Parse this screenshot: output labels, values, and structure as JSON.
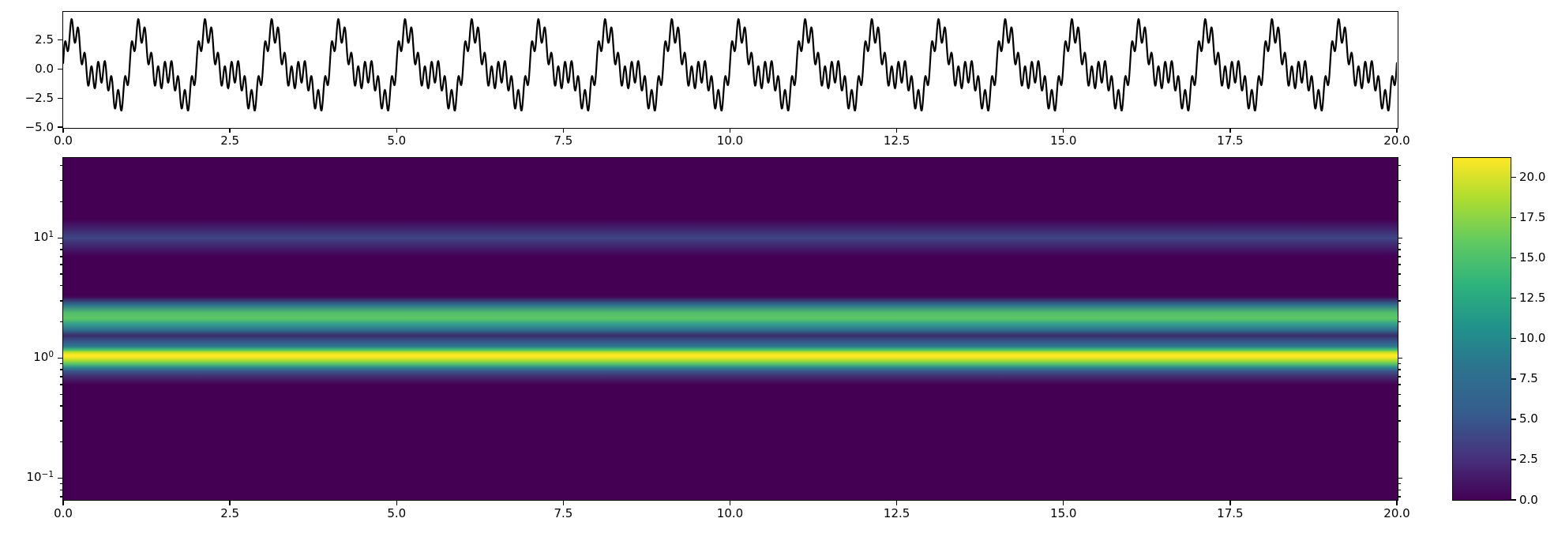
{
  "figure": {
    "background": "#ffffff",
    "title": "",
    "description": "Two-panel matplotlib-style figure: top panel shows a periodic multi-frequency time signal; bottom panel shows its continuous wavelet transform scalogram (viridis colormap, log frequency axis) with a colorbar."
  },
  "chart_data": [
    {
      "id": "signal",
      "type": "line",
      "title": "",
      "xlabel": "",
      "ylabel": "",
      "xlim": [
        0,
        20
      ],
      "ylim": [
        -5.0,
        4.93
      ],
      "grid": false,
      "line_color": "#000000",
      "line_width": 2.2,
      "x_ticks": [
        {
          "value": 0,
          "label": "0.0"
        },
        {
          "value": 2.5,
          "label": "2.5"
        },
        {
          "value": 5,
          "label": "5.0"
        },
        {
          "value": 7.5,
          "label": "7.5"
        },
        {
          "value": 10,
          "label": "10.0"
        },
        {
          "value": 12.5,
          "label": "12.5"
        },
        {
          "value": 15,
          "label": "15.0"
        },
        {
          "value": 17.5,
          "label": "17.5"
        },
        {
          "value": 20,
          "label": "20.0"
        }
      ],
      "y_ticks": [
        {
          "value": 2.5,
          "label": "2.5"
        },
        {
          "value": 0,
          "label": "0.0"
        },
        {
          "value": -2.5,
          "label": "−2.5"
        },
        {
          "value": -5,
          "label": "−5.0"
        }
      ],
      "components": {
        "description": "y(t) = sum of sinusoids",
        "frequencies": [
          1,
          2,
          10
        ],
        "amplitudes": [
          2.1,
          1.5,
          1.0
        ],
        "phases": [
          0.25,
          0,
          0
        ],
        "observed_max": 4.2,
        "observed_min": -4.2,
        "period": 1,
        "samples_per_unit": 160
      }
    },
    {
      "id": "scalogram",
      "type": "heatmap",
      "title": "",
      "xlabel": "",
      "ylabel": "",
      "xlim": [
        0,
        20
      ],
      "y_scale": "log",
      "ylim": [
        0.066,
        46.3
      ],
      "colormap": "viridis",
      "vmin": 0,
      "vmax": 21.2,
      "background_value": 0,
      "background_color": "#440154",
      "x_ticks": [
        {
          "value": 0,
          "label": "0.0"
        },
        {
          "value": 2.5,
          "label": "2.5"
        },
        {
          "value": 5,
          "label": "5.0"
        },
        {
          "value": 7.5,
          "label": "7.5"
        },
        {
          "value": 10,
          "label": "10.0"
        },
        {
          "value": 12.5,
          "label": "12.5"
        },
        {
          "value": 15,
          "label": "15.0"
        },
        {
          "value": 17.5,
          "label": "17.5"
        },
        {
          "value": 20,
          "label": "20.0"
        }
      ],
      "y_major_ticks": [
        {
          "value": 10,
          "base": "10",
          "exponent": "1"
        },
        {
          "value": 1,
          "base": "10",
          "exponent": "0"
        },
        {
          "value": 0.1,
          "base": "10",
          "exponent": "−1"
        }
      ],
      "bands": [
        {
          "center_frequency": 1,
          "peak_intensity": 21,
          "peak_color": "#fbe723",
          "note": "brightest yellow band, constant over all time"
        },
        {
          "center_frequency": 2,
          "peak_intensity": 15,
          "peak_color": "#5cc863",
          "note": "bright green band, constant over all time"
        },
        {
          "center_frequency": 10,
          "peak_intensity": 5,
          "peak_color": "#3f4586",
          "note": "faint blue band, constant over all time"
        },
        {
          "center_frequency": 1.4,
          "peak_intensity": 2,
          "peak_color": "#3a2c6b",
          "note": "dark interference notch between the 1 and 2 Hz bands with a thin blue sub-band"
        }
      ],
      "gradient_stops": [
        [
          0.0,
          "#440154"
        ],
        [
          18.01,
          "#440154"
        ],
        [
          23.33,
          "#3f4586"
        ],
        [
          28.64,
          "#440154"
        ],
        [
          40.42,
          "#440154"
        ],
        [
          42.96,
          "#2e6f8e"
        ],
        [
          45.27,
          "#52bd6c"
        ],
        [
          46.88,
          "#5cc863"
        ],
        [
          48.5,
          "#35a08d"
        ],
        [
          50.35,
          "#2e6f8e"
        ],
        [
          51.96,
          "#3a2c6b"
        ],
        [
          53.81,
          "#365a8c"
        ],
        [
          55.2,
          "#2d7c8e"
        ],
        [
          56.12,
          "#44bf70"
        ],
        [
          56.81,
          "#c0df25"
        ],
        [
          57.51,
          "#fbe723"
        ],
        [
          58.2,
          "#fbe723"
        ],
        [
          59.12,
          "#b5de2b"
        ],
        [
          60.05,
          "#63cb5f"
        ],
        [
          61.2,
          "#2e8f8d"
        ],
        [
          62.36,
          "#3a568b"
        ],
        [
          63.97,
          "#432c6e"
        ],
        [
          66.28,
          "#440154"
        ],
        [
          100.0,
          "#440154"
        ]
      ]
    }
  ],
  "colorbar": {
    "orientation": "vertical",
    "vmin": 0,
    "vmax": 21.2,
    "colormap": "viridis",
    "ticks": [
      {
        "value": 20,
        "label": "20.0"
      },
      {
        "value": 17.5,
        "label": "17.5"
      },
      {
        "value": 15,
        "label": "15.0"
      },
      {
        "value": 12.5,
        "label": "12.5"
      },
      {
        "value": 10,
        "label": "10.0"
      },
      {
        "value": 7.5,
        "label": "7.5"
      },
      {
        "value": 5,
        "label": "5.0"
      },
      {
        "value": 2.5,
        "label": "2.5"
      },
      {
        "value": 0,
        "label": "0.0"
      }
    ],
    "viridis_stops": [
      [
        0.0,
        "#440154"
      ],
      [
        0.125,
        "#46327e"
      ],
      [
        0.25,
        "#365c8d"
      ],
      [
        0.375,
        "#2d708e"
      ],
      [
        0.5,
        "#21918c"
      ],
      [
        0.625,
        "#2db27d"
      ],
      [
        0.75,
        "#5ec962"
      ],
      [
        0.875,
        "#aadc32"
      ],
      [
        1.0,
        "#fde725"
      ]
    ]
  }
}
